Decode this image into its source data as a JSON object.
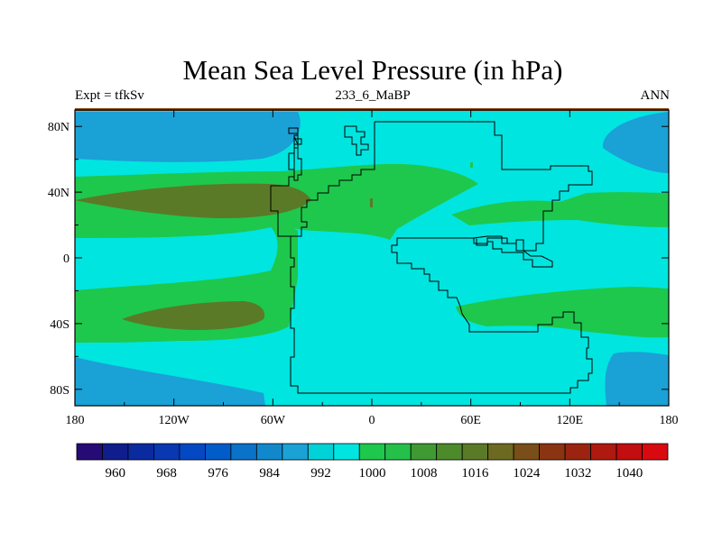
{
  "title": "Mean Sea Level Pressure (in hPa)",
  "left_string": "Expt = tfkSv",
  "center_string": "233_6_MaBP",
  "right_string": "ANN",
  "colors": {
    "deep_blue": "#1aa1d6",
    "pale": "#00e5e0",
    "green": "#1ec84c",
    "olive": "#5b7a28",
    "border_top": "#8b4513"
  },
  "chart_data": {
    "type": "heatmap",
    "title": "Mean Sea Level Pressure (in hPa)",
    "xlabel": "",
    "ylabel": "",
    "xlim": [
      -180,
      180
    ],
    "ylim": [
      -90,
      90
    ],
    "x_ticks": [
      {
        "value": -180,
        "label": "180"
      },
      {
        "value": -120,
        "label": "120W"
      },
      {
        "value": -60,
        "label": "60W"
      },
      {
        "value": 0,
        "label": "0"
      },
      {
        "value": 60,
        "label": "60E"
      },
      {
        "value": 120,
        "label": "120E"
      },
      {
        "value": 180,
        "label": "180"
      }
    ],
    "y_ticks": [
      {
        "value": 80,
        "label": "80N"
      },
      {
        "value": 40,
        "label": "40N"
      },
      {
        "value": 0,
        "label": "0"
      },
      {
        "value": -40,
        "label": "40S"
      },
      {
        "value": -80,
        "label": "80S"
      }
    ],
    "colorbar": {
      "levels": [
        956,
        960,
        964,
        968,
        972,
        976,
        980,
        984,
        988,
        992,
        996,
        1000,
        1004,
        1008,
        1012,
        1016,
        1020,
        1024,
        1028,
        1032,
        1036,
        1040,
        1044
      ],
      "colors": [
        "#260a75",
        "#0f1e8c",
        "#0a2aa0",
        "#0838b2",
        "#0548c3",
        "#005cc8",
        "#0a72c8",
        "#1288cc",
        "#1aa1d6",
        "#00d2d8",
        "#00e5e0",
        "#1ec84c",
        "#24c04a",
        "#3f9a34",
        "#4c8a2c",
        "#5b7a28",
        "#6b6a20",
        "#7a4e18",
        "#8a3412",
        "#9a2410",
        "#ae1a10",
        "#c20e10",
        "#d80a10"
      ],
      "labels": [
        {
          "value": 960,
          "label": "960"
        },
        {
          "value": 968,
          "label": "968"
        },
        {
          "value": 976,
          "label": "976"
        },
        {
          "value": 984,
          "label": "984"
        },
        {
          "value": 992,
          "label": "992"
        },
        {
          "value": 1000,
          "label": "1000"
        },
        {
          "value": 1008,
          "label": "1008"
        },
        {
          "value": 1016,
          "label": "1016"
        },
        {
          "value": 1024,
          "label": "1024"
        },
        {
          "value": 1032,
          "label": "1032"
        },
        {
          "value": 1040,
          "label": "1040"
        }
      ]
    }
  }
}
